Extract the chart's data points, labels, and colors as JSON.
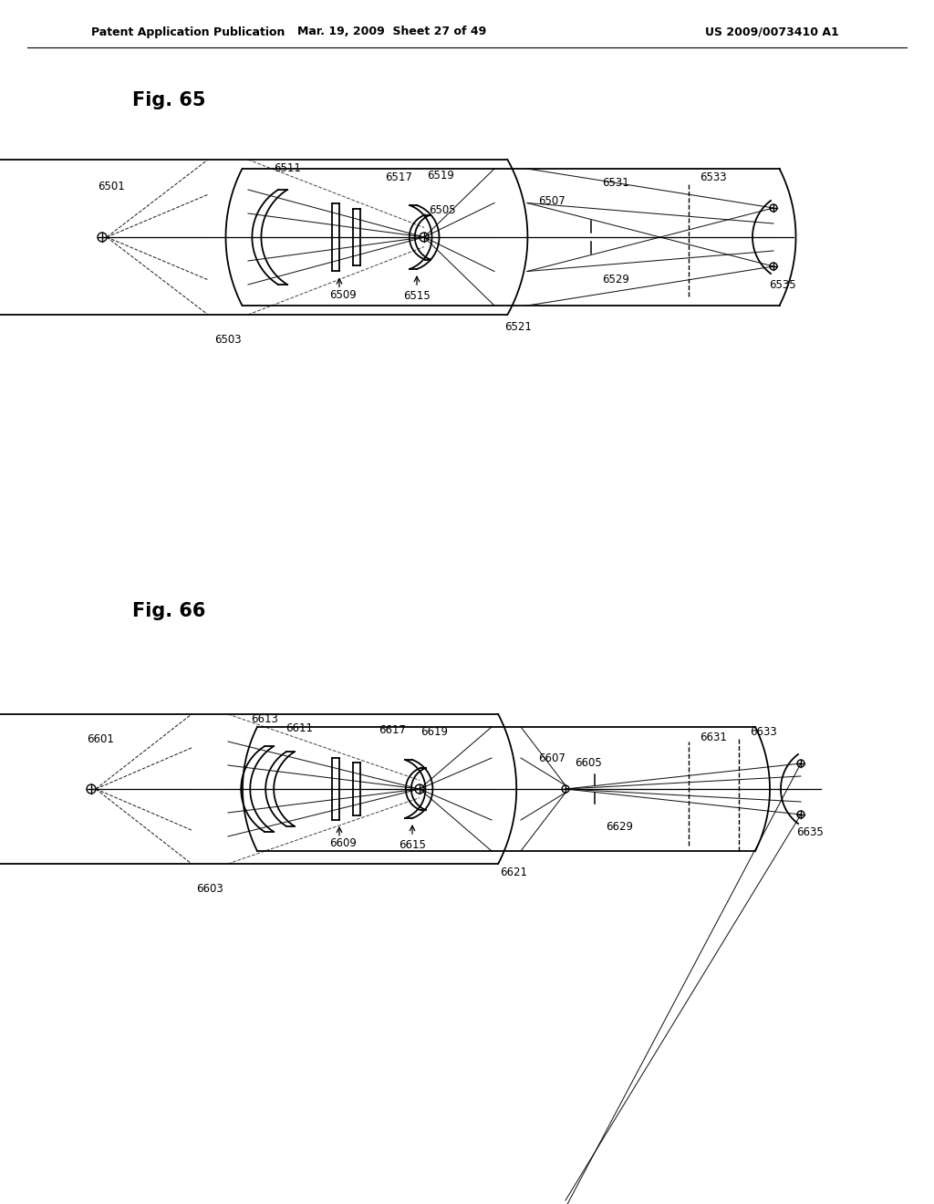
{
  "bg_color": "#ffffff",
  "header_left": "Patent Application Publication",
  "header_mid": "Mar. 19, 2009  Sheet 27 of 49",
  "header_right": "US 2009/0073410 A1",
  "fig65_label": "Fig. 65",
  "fig66_label": "Fig. 66"
}
